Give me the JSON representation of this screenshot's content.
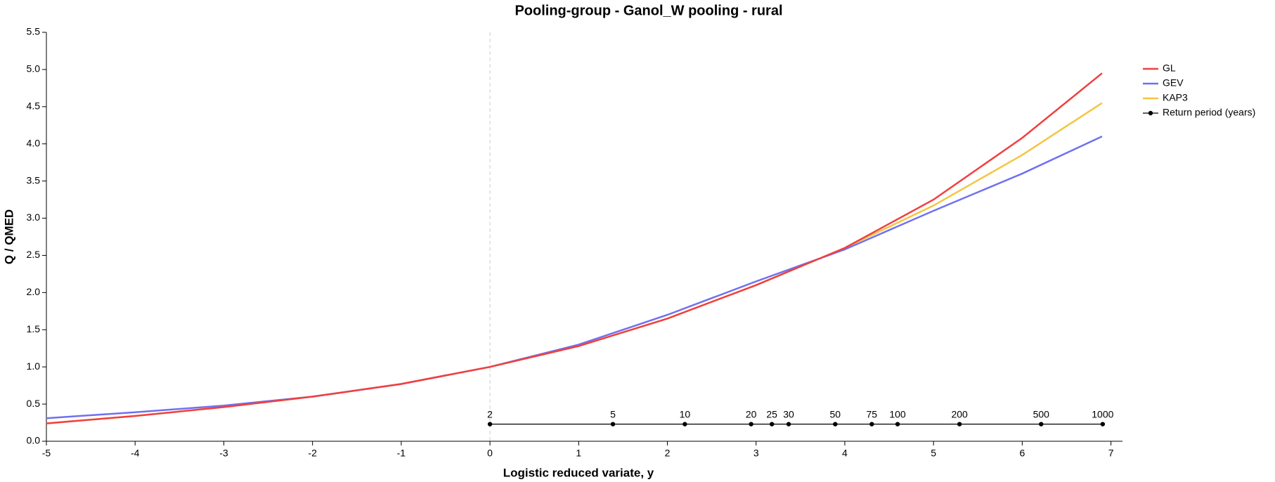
{
  "chart_data": {
    "type": "line",
    "title": "Pooling-group - Ganol_W pooling - rural",
    "x_label": "Logistic reduced variate, y",
    "y_label": "Q / QMED",
    "x": [
      -5,
      -4,
      -3,
      -2,
      -1,
      0,
      1,
      2,
      3,
      4,
      5,
      6,
      6.9
    ],
    "series": [
      {
        "name": "KAP3",
        "color": "#f5c542",
        "values": [
          0.24,
          0.34,
          0.46,
          0.6,
          0.77,
          1.0,
          1.28,
          1.65,
          2.1,
          2.6,
          3.17,
          3.85,
          4.55
        ]
      },
      {
        "name": "GEV",
        "color": "#7070f0",
        "values": [
          0.31,
          0.39,
          0.48,
          0.6,
          0.77,
          1.0,
          1.3,
          1.7,
          2.15,
          2.58,
          3.1,
          3.6,
          4.1
        ]
      },
      {
        "name": "GL",
        "color": "#f04040",
        "values": [
          0.24,
          0.34,
          0.46,
          0.6,
          0.77,
          1.0,
          1.28,
          1.65,
          2.1,
          2.6,
          3.25,
          4.08,
          4.95
        ]
      }
    ],
    "legend_order": [
      "GL",
      "GEV",
      "KAP3"
    ],
    "return_period": {
      "name": "Return period (years)",
      "color": "#000000",
      "x": [
        0,
        1.386,
        2.197,
        2.944,
        3.178,
        3.367,
        3.892,
        4.304,
        4.595,
        5.293,
        6.213,
        6.907
      ],
      "values": [
        0.23,
        0.23,
        0.23,
        0.23,
        0.23,
        0.23,
        0.23,
        0.23,
        0.23,
        0.23,
        0.23,
        0.23
      ],
      "labels": [
        2,
        5,
        10,
        20,
        25,
        30,
        50,
        75,
        100,
        200,
        500,
        1000
      ]
    },
    "reference_x": 0,
    "xlim": [
      -5,
      7.13
    ],
    "xticks": [
      -5,
      -4,
      -3,
      -2,
      -1,
      0,
      1,
      2,
      3,
      4,
      5,
      6,
      7
    ],
    "ylim": [
      0,
      5.5
    ],
    "yticks": [
      {
        "value": 0,
        "label": "0.0"
      },
      0.5,
      {
        "value": 1,
        "label": "1.0"
      },
      1.5,
      {
        "value": 2,
        "label": "2.0"
      },
      2.5,
      {
        "value": 3,
        "label": "3.0"
      },
      3.5,
      {
        "value": 4,
        "label": "4.0"
      },
      4.5,
      {
        "value": 5,
        "label": "5.0"
      },
      5.5
    ],
    "legend": "right"
  }
}
